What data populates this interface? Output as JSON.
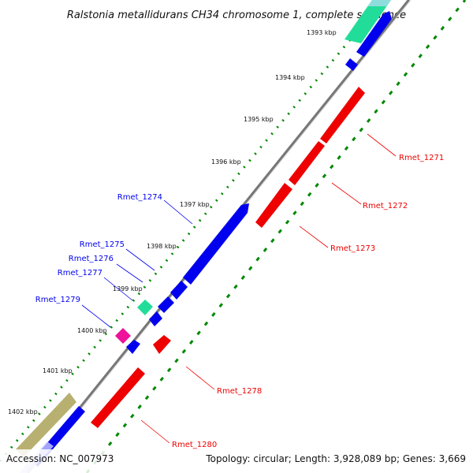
{
  "title": "Ralstonia metallidurans CH34 chromosome 1, complete sequence",
  "accession": "Accession: NC_007973",
  "topology": "Topology: circular; Length: 3,928,089 bp; Genes: 3,669",
  "ticks": [
    "1393 kbp",
    "1394 kbp",
    "1395 kbp",
    "1396 kbp",
    "1397 kbp",
    "1398 kbp",
    "1399 kbp",
    "1400 kbp",
    "1401 kbp",
    "1402 kbp"
  ],
  "forward_genes": [
    "Rmet_1274",
    "Rmet_1275",
    "Rmet_1276",
    "Rmet_1277",
    "Rmet_1279"
  ],
  "reverse_genes": [
    "Rmet_1271",
    "Rmet_1272",
    "Rmet_1273",
    "Rmet_1278",
    "Rmet_1280"
  ],
  "colors": {
    "forward": "#0000ee",
    "reverse": "#ee0000",
    "backbone": "#888888",
    "tick_dots": "#008800",
    "gene_teal": "#22dd99",
    "gene_magenta": "#ee1199",
    "gene_olive": "#b8b070"
  }
}
